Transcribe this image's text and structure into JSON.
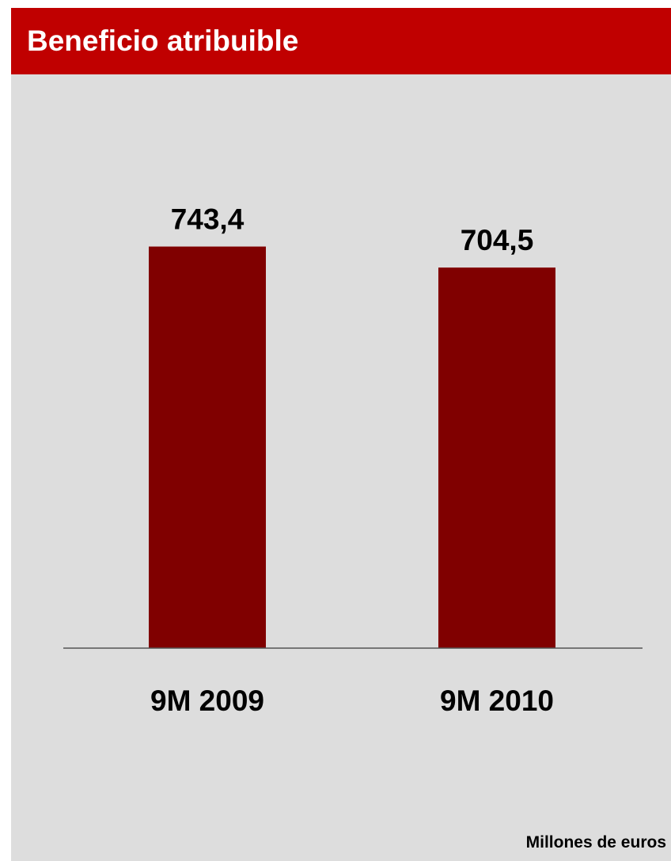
{
  "header": {
    "title": "Beneficio atribuible"
  },
  "chart_data": {
    "type": "bar",
    "categories": [
      "9M 2009",
      "9M 2010"
    ],
    "values": [
      743.4,
      704.5
    ],
    "value_labels": [
      "743,4",
      "704,5"
    ],
    "unit": "Millones de euros",
    "title": "",
    "xlabel": "",
    "ylabel": "",
    "ylim": [
      0,
      900
    ],
    "grid": false,
    "legend": "none",
    "colors": {
      "bar": "#800000",
      "header": "#c00000",
      "background": "#dddddd",
      "baseline": "#555555"
    }
  }
}
